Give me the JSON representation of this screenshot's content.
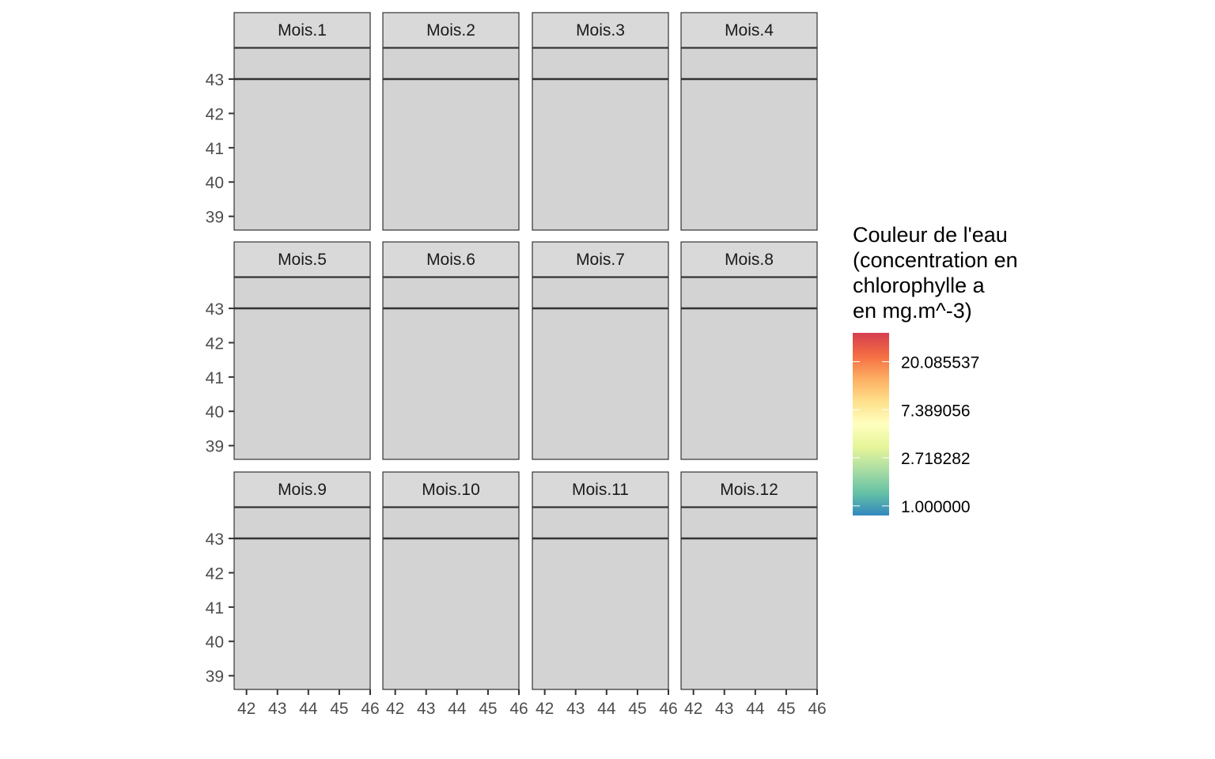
{
  "chart_data": {
    "type": "heatmap",
    "facets": [
      "Mois.1",
      "Mois.2",
      "Mois.3",
      "Mois.4",
      "Mois.5",
      "Mois.6",
      "Mois.7",
      "Mois.8",
      "Mois.9",
      "Mois.10",
      "Mois.11",
      "Mois.12"
    ],
    "xlim": [
      41.6,
      46
    ],
    "ylim": [
      38.6,
      43.9
    ],
    "x_ticks": [
      42,
      43,
      44,
      45,
      46
    ],
    "y_ticks": [
      39,
      40,
      41,
      42,
      43
    ],
    "coastline_y": 43,
    "panel_fill": "#d3d3d3",
    "legend": {
      "title_lines": [
        "Couleur de l'eau",
        "(concentration en",
        "chlorophylle a",
        "en mg.m^-3)"
      ],
      "labels": [
        "20.085537",
        "7.389056",
        "2.718282",
        "1.000000"
      ],
      "label_values": [
        20.085537,
        7.389056,
        2.718282,
        1.0
      ],
      "colorbar_range_log": [
        -0.2,
        3.6
      ],
      "colors": [
        "#3288bd",
        "#66c2a5",
        "#abdda4",
        "#e6f598",
        "#ffffbf",
        "#fee08b",
        "#fdae61",
        "#f46d43",
        "#d53e4f"
      ]
    }
  }
}
